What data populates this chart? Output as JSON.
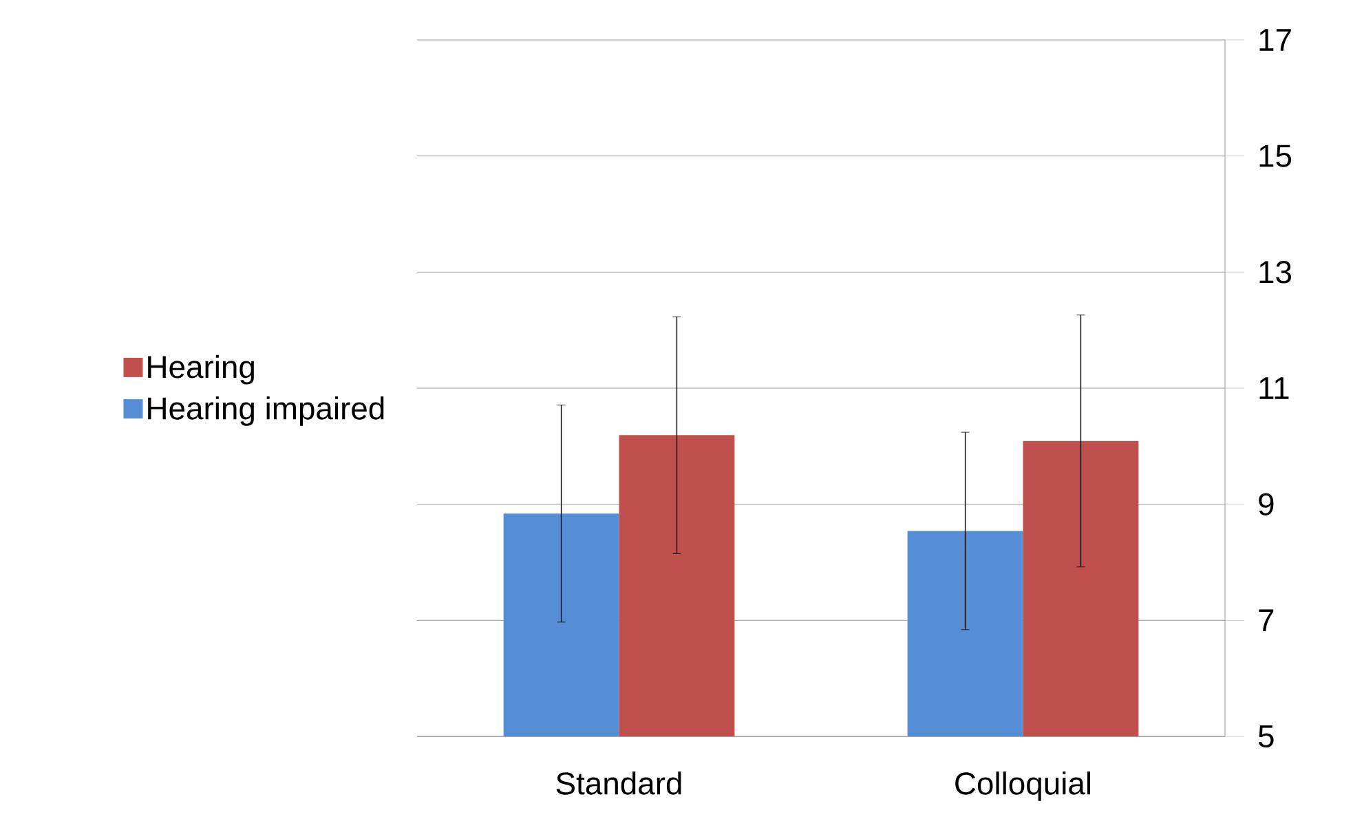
{
  "chart_data": {
    "type": "bar",
    "categories": [
      "Standard",
      "Colloquial"
    ],
    "series": [
      {
        "name": "Hearing impaired",
        "color": "#558ed5",
        "values": [
          8.84,
          8.54
        ],
        "errors": [
          1.87,
          1.7
        ]
      },
      {
        "name": "Hearing",
        "color": "#c0504d",
        "values": [
          10.19,
          10.09
        ],
        "errors": [
          2.04,
          2.17
        ]
      }
    ],
    "ylim": [
      5,
      17
    ],
    "yticks": [
      5,
      7,
      9,
      11,
      13,
      15,
      17
    ],
    "grid": "y",
    "legend": "left"
  }
}
